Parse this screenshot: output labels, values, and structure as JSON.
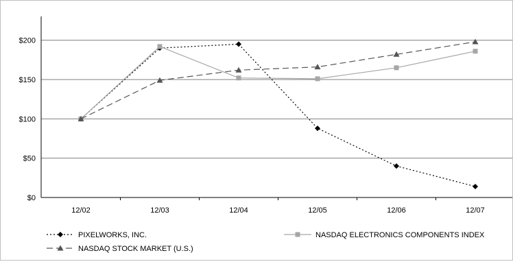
{
  "chart_data": {
    "type": "line",
    "categories": [
      "12/02",
      "12/03",
      "12/04",
      "12/05",
      "12/06",
      "12/07"
    ],
    "y_ticks": [
      "$0",
      "$50",
      "$100",
      "$150",
      "$200"
    ],
    "ylim": [
      0,
      225
    ],
    "grid": true,
    "legend_position": "bottom",
    "series": [
      {
        "name": "PIXELWORKS, INC.",
        "values": [
          100,
          190,
          195,
          88,
          40,
          14
        ],
        "color": "#000000",
        "line_style": "dotted",
        "marker": "diamond"
      },
      {
        "name": "NASDAQ ELECTRONICS COMPONENTS INDEX",
        "values": [
          100,
          192,
          152,
          151,
          165,
          186
        ],
        "color": "#a6a6a6",
        "line_style": "solid",
        "marker": "square"
      },
      {
        "name": "NASDAQ STOCK MARKET (U.S.)",
        "values": [
          100,
          149,
          162,
          166,
          182,
          198
        ],
        "color": "#555555",
        "line_style": "dashed",
        "marker": "triangle"
      }
    ]
  }
}
